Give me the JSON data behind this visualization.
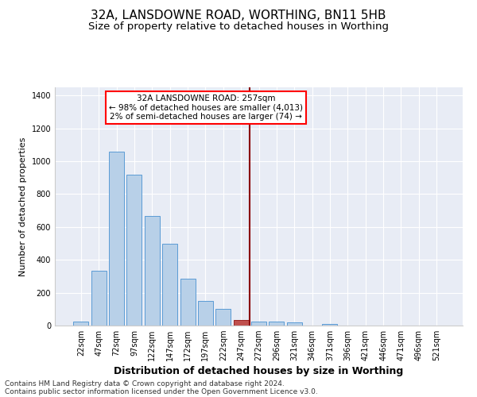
{
  "title": "32A, LANSDOWNE ROAD, WORTHING, BN11 5HB",
  "subtitle": "Size of property relative to detached houses in Worthing",
  "xlabel": "Distribution of detached houses by size in Worthing",
  "ylabel": "Number of detached properties",
  "categories": [
    "22sqm",
    "47sqm",
    "72sqm",
    "97sqm",
    "122sqm",
    "147sqm",
    "172sqm",
    "197sqm",
    "222sqm",
    "247sqm",
    "272sqm",
    "296sqm",
    "321sqm",
    "346sqm",
    "371sqm",
    "396sqm",
    "421sqm",
    "446sqm",
    "471sqm",
    "496sqm",
    "521sqm"
  ],
  "bar_values": [
    22,
    335,
    1060,
    920,
    665,
    500,
    285,
    150,
    100,
    35,
    25,
    25,
    18,
    0,
    12,
    0,
    0,
    0,
    0,
    0,
    0
  ],
  "bar_color": "#b8d0e8",
  "bar_edge_color": "#5b9bd5",
  "highlight_bar_index": 9,
  "highlight_bar_color": "#c0504d",
  "highlight_bar_edge_color": "#9b2323",
  "vline_x_index": 9.5,
  "vline_color": "#8b0000",
  "annotation_box_text": "32A LANSDOWNE ROAD: 257sqm\n← 98% of detached houses are smaller (4,013)\n2% of semi-detached houses are larger (74) →",
  "ylim": [
    0,
    1450
  ],
  "yticks": [
    0,
    200,
    400,
    600,
    800,
    1000,
    1200,
    1400
  ],
  "plot_bg_color": "#e8ecf5",
  "fig_bg_color": "#ffffff",
  "footer_line1": "Contains HM Land Registry data © Crown copyright and database right 2024.",
  "footer_line2": "Contains public sector information licensed under the Open Government Licence v3.0.",
  "title_fontsize": 11,
  "subtitle_fontsize": 9.5,
  "xlabel_fontsize": 9,
  "ylabel_fontsize": 8,
  "tick_fontsize": 7,
  "annot_fontsize": 7.5,
  "footer_fontsize": 6.5
}
